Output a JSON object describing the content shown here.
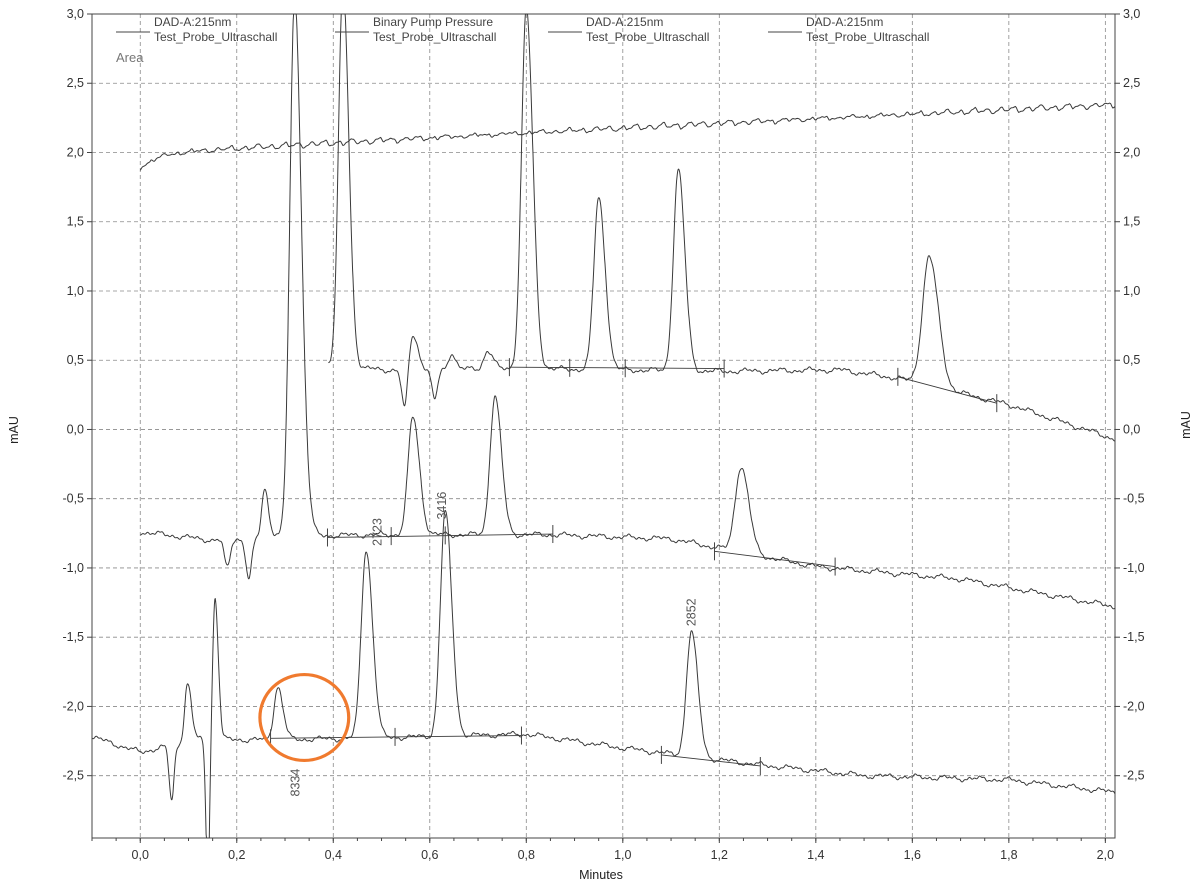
{
  "chart_data": {
    "type": "line",
    "xlabel": "Minutes",
    "ylabel_left": "mAU",
    "ylabel_right": "mAU",
    "xlim": [
      -0.1,
      2.02
    ],
    "ylim": [
      -2.95,
      3.0
    ],
    "x_ticks": [
      {
        "value": 0.0,
        "label": "0,0"
      },
      {
        "value": 0.2,
        "label": "0,2"
      },
      {
        "value": 0.4,
        "label": "0,4"
      },
      {
        "value": 0.6,
        "label": "0,6"
      },
      {
        "value": 0.8,
        "label": "0,8"
      },
      {
        "value": 1.0,
        "label": "1,0"
      },
      {
        "value": 1.2,
        "label": "1,2"
      },
      {
        "value": 1.4,
        "label": "1,4"
      },
      {
        "value": 1.6,
        "label": "1,6"
      },
      {
        "value": 1.8,
        "label": "1,8"
      },
      {
        "value": 2.0,
        "label": "2,0"
      }
    ],
    "y_ticks": [
      {
        "value": 3.0,
        "label": "3,0"
      },
      {
        "value": 2.5,
        "label": "2,5"
      },
      {
        "value": 2.0,
        "label": "2,0"
      },
      {
        "value": 1.5,
        "label": "1,5"
      },
      {
        "value": 1.0,
        "label": "1,0"
      },
      {
        "value": 0.5,
        "label": "0,5"
      },
      {
        "value": 0.0,
        "label": "0,0"
      },
      {
        "value": -0.5,
        "label": "-0,5"
      },
      {
        "value": -1.0,
        "label": "-1,0"
      },
      {
        "value": -1.5,
        "label": "-1,5"
      },
      {
        "value": -2.0,
        "label": "-2,0"
      },
      {
        "value": -2.5,
        "label": "-2,5"
      }
    ],
    "grid": true,
    "legend_position": "top",
    "area_label": "Area",
    "legend": [
      {
        "line1": "DAD-A:215nm",
        "line2": "Test_Probe_Ultraschall"
      },
      {
        "line1": "Binary Pump Pressure",
        "line2": "Test_Probe_Ultraschall"
      },
      {
        "line1": "DAD-A:215nm",
        "line2": "Test_Probe_Ultraschall"
      },
      {
        "line1": "DAD-A:215nm",
        "line2": "Test_Probe_Ultraschall"
      }
    ],
    "series": [
      {
        "role": "pressure",
        "x0": 0.0,
        "x1": 2.02,
        "y_start": 1.97,
        "y_end": 2.33,
        "sawtooth_period": 0.028,
        "sawtooth_amplitude": 0.03
      },
      {
        "role": "trace-upper",
        "start_x": 0.39,
        "end_x": 2.02,
        "baseline_points": [
          [
            0.39,
            0.47
          ],
          [
            0.5,
            0.43
          ],
          [
            0.8,
            0.44
          ],
          [
            1.2,
            0.42
          ],
          [
            1.45,
            0.43
          ],
          [
            1.57,
            0.37
          ],
          [
            1.8,
            0.18
          ],
          [
            2.02,
            -0.07
          ]
        ],
        "peaks": [
          {
            "rt": 0.42,
            "height": 2.75,
            "width": 0.009
          },
          {
            "rt": 0.565,
            "height": 0.25,
            "width": 0.008
          },
          {
            "rt": 0.645,
            "height": 0.12,
            "width": 0.006
          },
          {
            "rt": 0.72,
            "height": 0.13,
            "width": 0.008
          },
          {
            "rt": 0.8,
            "height": 2.6,
            "width": 0.01
          },
          {
            "rt": 0.95,
            "height": 1.24,
            "width": 0.01
          },
          {
            "rt": 1.115,
            "height": 1.45,
            "width": 0.01
          },
          {
            "rt": 1.635,
            "height": 0.93,
            "width": 0.014
          }
        ],
        "dips": [
          {
            "rt": 0.548,
            "depth": 0.3,
            "width": 0.006
          },
          {
            "rt": 0.61,
            "depth": 0.22,
            "width": 0.006
          }
        ]
      },
      {
        "role": "trace-middle",
        "start_x": 0.0,
        "end_x": 2.02,
        "baseline_points": [
          [
            0.0,
            -0.74
          ],
          [
            0.15,
            -0.8
          ],
          [
            0.3,
            -0.77
          ],
          [
            0.5,
            -0.76
          ],
          [
            0.85,
            -0.76
          ],
          [
            1.1,
            -0.79
          ],
          [
            1.4,
            -0.99
          ],
          [
            1.7,
            -1.08
          ],
          [
            2.02,
            -1.28
          ]
        ],
        "peaks": [
          {
            "rt": 0.32,
            "height": 3.9,
            "width": 0.01
          },
          {
            "rt": 0.258,
            "height": 0.35,
            "width": 0.006
          },
          {
            "rt": 0.345,
            "height": 0.1,
            "width": 0.008
          },
          {
            "rt": 0.565,
            "height": 0.85,
            "width": 0.01
          },
          {
            "rt": 0.735,
            "height": 1.0,
            "width": 0.01
          },
          {
            "rt": 1.245,
            "height": 0.62,
            "width": 0.012
          }
        ],
        "dips": [
          {
            "rt": 0.18,
            "depth": 0.2,
            "width": 0.006
          },
          {
            "rt": 0.225,
            "depth": 0.3,
            "width": 0.006
          }
        ]
      },
      {
        "role": "trace-lower",
        "start_x": -0.1,
        "end_x": 2.02,
        "baseline_points": [
          [
            -0.1,
            -2.22
          ],
          [
            0.0,
            -2.33
          ],
          [
            0.12,
            -2.24
          ],
          [
            0.28,
            -2.24
          ],
          [
            0.45,
            -2.23
          ],
          [
            0.8,
            -2.2
          ],
          [
            1.0,
            -2.3
          ],
          [
            1.28,
            -2.42
          ],
          [
            1.5,
            -2.5
          ],
          [
            1.8,
            -2.53
          ],
          [
            2.02,
            -2.62
          ]
        ],
        "peaks": [
          {
            "rt": 0.155,
            "height": 1.02,
            "width": 0.005
          },
          {
            "rt": 0.098,
            "height": 0.42,
            "width": 0.006
          },
          {
            "rt": 0.285,
            "height": 0.38,
            "width": 0.008
          },
          {
            "rt": 0.468,
            "height": 1.36,
            "width": 0.01
          },
          {
            "rt": 0.632,
            "height": 1.62,
            "width": 0.01
          },
          {
            "rt": 1.142,
            "height": 0.9,
            "width": 0.01
          }
        ],
        "dips": [
          {
            "rt": 0.065,
            "depth": 0.4,
            "width": 0.005
          },
          {
            "rt": 0.14,
            "depth": 1.0,
            "width": 0.004
          }
        ]
      }
    ],
    "integration_baselines": [
      {
        "x0": 0.388,
        "y0": -0.78,
        "x1": 0.855,
        "y1": -0.755
      },
      {
        "x0": 1.19,
        "y0": -0.88,
        "x1": 1.44,
        "y1": -0.99
      },
      {
        "x0": 0.27,
        "y0": -2.23,
        "x1": 0.79,
        "y1": -2.21
      },
      {
        "x0": 1.08,
        "y0": -2.35,
        "x1": 1.285,
        "y1": -2.43
      },
      {
        "x0": 0.765,
        "y0": 0.45,
        "x1": 1.21,
        "y1": 0.44
      },
      {
        "x0": 1.57,
        "y0": 0.38,
        "x1": 1.775,
        "y1": 0.19
      }
    ],
    "integration_marks": [
      [
        0.388,
        -0.78
      ],
      [
        0.52,
        -0.77
      ],
      [
        0.632,
        -0.765
      ],
      [
        0.855,
        -0.755
      ],
      [
        1.19,
        -0.88
      ],
      [
        1.44,
        -0.99
      ],
      [
        0.27,
        -2.23
      ],
      [
        0.528,
        -2.22
      ],
      [
        0.79,
        -2.21
      ],
      [
        1.08,
        -2.35
      ],
      [
        1.285,
        -2.43
      ],
      [
        0.765,
        0.45
      ],
      [
        0.89,
        0.445
      ],
      [
        1.005,
        0.442
      ],
      [
        1.21,
        0.44
      ],
      [
        1.57,
        0.38
      ],
      [
        1.775,
        0.19
      ]
    ],
    "peak_labels": [
      {
        "text": "2723",
        "x": 0.492,
        "y": -0.74
      },
      {
        "text": "3416",
        "x": 0.625,
        "y": -0.55
      },
      {
        "text": "2852",
        "x": 1.142,
        "y": -1.32
      },
      {
        "text": "8334",
        "x": 0.322,
        "y": -2.55
      }
    ],
    "annotation_circle": {
      "color": "#f07a2e",
      "cx": 0.34,
      "cy": -2.08,
      "rx": 0.092,
      "ry": 0.31
    }
  }
}
